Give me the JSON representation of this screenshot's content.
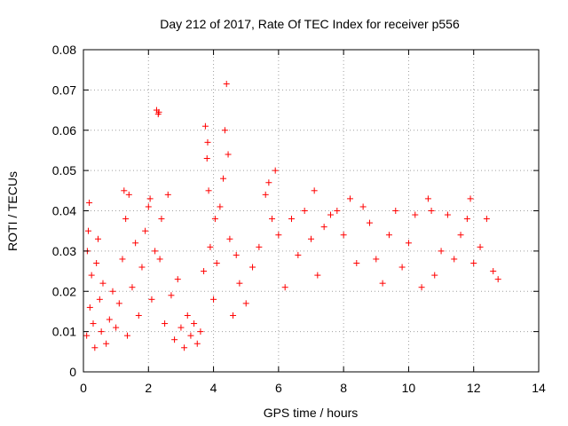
{
  "chart_data": {
    "type": "scatter",
    "title": "Day 212 of 2017, Rate Of TEC Index for receiver p556",
    "xlabel": "GPS time / hours",
    "ylabel": "ROTI / TECUs",
    "xlim": [
      0,
      14
    ],
    "ylim": [
      0,
      0.08
    ],
    "xticks": [
      0,
      2,
      4,
      6,
      8,
      10,
      12,
      14
    ],
    "yticks": [
      0,
      0.01,
      0.02,
      0.03,
      0.04,
      0.05,
      0.06,
      0.07,
      0.08
    ],
    "xtick_labels": [
      "0",
      "2",
      "4",
      "6",
      "8",
      "10",
      "12",
      "14"
    ],
    "ytick_labels": [
      "0",
      "0.01",
      "0.02",
      "0.03",
      "0.04",
      "0.05",
      "0.06",
      "0.07",
      "0.08"
    ],
    "grid": true,
    "marker": "+",
    "color": "#ff0000",
    "series": [
      {
        "name": "ROTI",
        "points": [
          [
            0.1,
            0.009
          ],
          [
            0.12,
            0.03
          ],
          [
            0.15,
            0.035
          ],
          [
            0.18,
            0.042
          ],
          [
            0.2,
            0.016
          ],
          [
            0.25,
            0.024
          ],
          [
            0.3,
            0.012
          ],
          [
            0.35,
            0.006
          ],
          [
            0.4,
            0.027
          ],
          [
            0.45,
            0.033
          ],
          [
            0.5,
            0.018
          ],
          [
            0.55,
            0.01
          ],
          [
            0.6,
            0.022
          ],
          [
            0.7,
            0.007
          ],
          [
            0.8,
            0.013
          ],
          [
            0.9,
            0.02
          ],
          [
            1.0,
            0.011
          ],
          [
            1.1,
            0.017
          ],
          [
            1.2,
            0.028
          ],
          [
            1.25,
            0.045
          ],
          [
            1.3,
            0.038
          ],
          [
            1.35,
            0.009
          ],
          [
            1.4,
            0.044
          ],
          [
            1.5,
            0.021
          ],
          [
            1.6,
            0.032
          ],
          [
            1.7,
            0.014
          ],
          [
            1.8,
            0.026
          ],
          [
            1.9,
            0.035
          ],
          [
            2.0,
            0.041
          ],
          [
            2.05,
            0.043
          ],
          [
            2.1,
            0.018
          ],
          [
            2.2,
            0.03
          ],
          [
            2.25,
            0.065
          ],
          [
            2.3,
            0.064
          ],
          [
            2.32,
            0.0645
          ],
          [
            2.35,
            0.028
          ],
          [
            2.4,
            0.038
          ],
          [
            2.5,
            0.012
          ],
          [
            2.6,
            0.044
          ],
          [
            2.7,
            0.019
          ],
          [
            2.8,
            0.008
          ],
          [
            2.9,
            0.023
          ],
          [
            3.0,
            0.011
          ],
          [
            3.1,
            0.006
          ],
          [
            3.2,
            0.014
          ],
          [
            3.3,
            0.009
          ],
          [
            3.4,
            0.012
          ],
          [
            3.5,
            0.007
          ],
          [
            3.6,
            0.01
          ],
          [
            3.7,
            0.025
          ],
          [
            3.75,
            0.061
          ],
          [
            3.8,
            0.053
          ],
          [
            3.82,
            0.057
          ],
          [
            3.85,
            0.045
          ],
          [
            3.9,
            0.031
          ],
          [
            4.0,
            0.018
          ],
          [
            4.05,
            0.038
          ],
          [
            4.1,
            0.027
          ],
          [
            4.2,
            0.041
          ],
          [
            4.3,
            0.048
          ],
          [
            4.35,
            0.06
          ],
          [
            4.4,
            0.0715
          ],
          [
            4.45,
            0.054
          ],
          [
            4.5,
            0.033
          ],
          [
            4.6,
            0.014
          ],
          [
            4.7,
            0.029
          ],
          [
            4.8,
            0.022
          ],
          [
            5.0,
            0.017
          ],
          [
            5.2,
            0.026
          ],
          [
            5.4,
            0.031
          ],
          [
            5.6,
            0.044
          ],
          [
            5.7,
            0.047
          ],
          [
            5.8,
            0.038
          ],
          [
            5.9,
            0.05
          ],
          [
            6.0,
            0.034
          ],
          [
            6.2,
            0.021
          ],
          [
            6.4,
            0.038
          ],
          [
            6.6,
            0.029
          ],
          [
            6.8,
            0.04
          ],
          [
            7.0,
            0.033
          ],
          [
            7.1,
            0.045
          ],
          [
            7.2,
            0.024
          ],
          [
            7.4,
            0.036
          ],
          [
            7.6,
            0.039
          ],
          [
            7.8,
            0.04
          ],
          [
            8.0,
            0.034
          ],
          [
            8.2,
            0.043
          ],
          [
            8.4,
            0.027
          ],
          [
            8.6,
            0.041
          ],
          [
            8.8,
            0.037
          ],
          [
            9.0,
            0.028
          ],
          [
            9.2,
            0.022
          ],
          [
            9.4,
            0.034
          ],
          [
            9.6,
            0.04
          ],
          [
            9.8,
            0.026
          ],
          [
            10.0,
            0.032
          ],
          [
            10.2,
            0.039
          ],
          [
            10.4,
            0.021
          ],
          [
            10.6,
            0.043
          ],
          [
            10.7,
            0.04
          ],
          [
            10.8,
            0.024
          ],
          [
            11.0,
            0.03
          ],
          [
            11.2,
            0.039
          ],
          [
            11.4,
            0.028
          ],
          [
            11.6,
            0.034
          ],
          [
            11.8,
            0.038
          ],
          [
            11.9,
            0.043
          ],
          [
            12.0,
            0.027
          ],
          [
            12.2,
            0.031
          ],
          [
            12.4,
            0.038
          ],
          [
            12.6,
            0.025
          ],
          [
            12.75,
            0.023
          ]
        ]
      }
    ]
  }
}
